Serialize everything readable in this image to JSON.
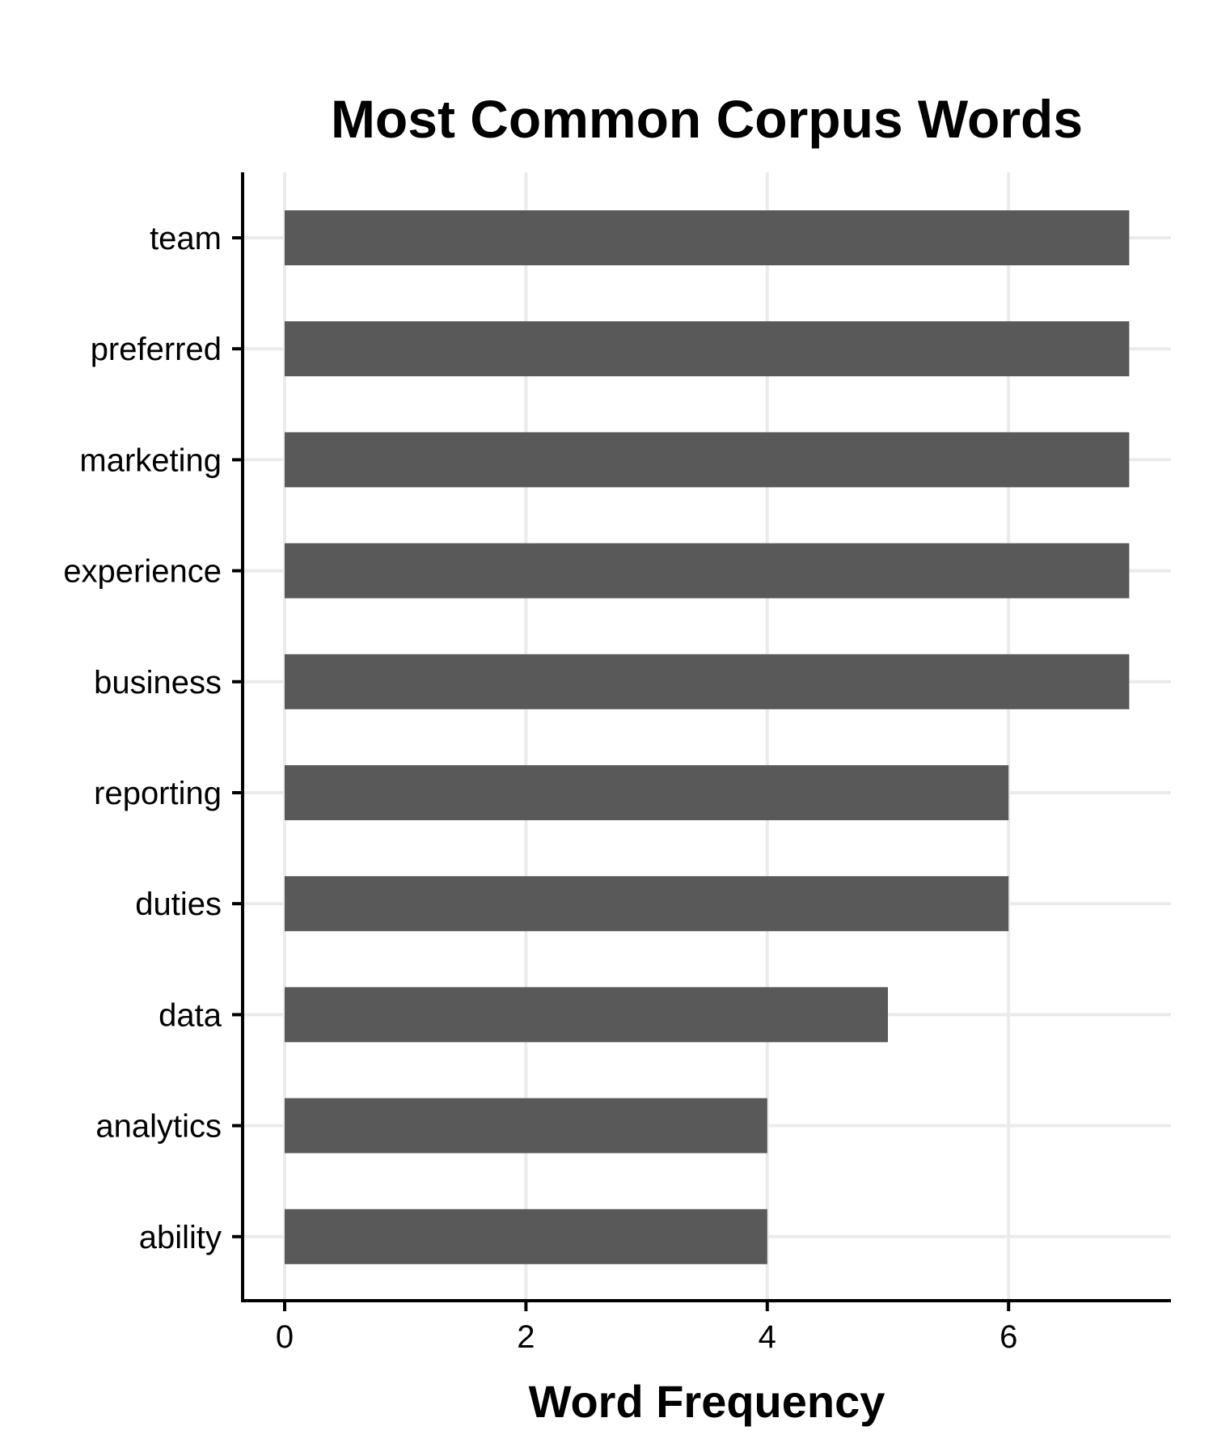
{
  "chart_data": {
    "type": "bar",
    "orientation": "horizontal",
    "title": "Most Common Corpus Words",
    "xlabel": "Word Frequency",
    "ylabel": "",
    "categories": [
      "team",
      "preferred",
      "marketing",
      "experience",
      "business",
      "reporting",
      "duties",
      "data",
      "analytics",
      "ability"
    ],
    "values": [
      7,
      7,
      7,
      7,
      7,
      6,
      6,
      5,
      4,
      4
    ],
    "xlim": [
      0,
      7
    ],
    "xticks": [
      0,
      2,
      4,
      6
    ],
    "xtick_labels": [
      "0",
      "2",
      "4",
      "6"
    ],
    "grid": true,
    "legend": "none",
    "bar_color": "#595959",
    "grid_color": "#ebebeb",
    "axis_color": "#000000"
  }
}
